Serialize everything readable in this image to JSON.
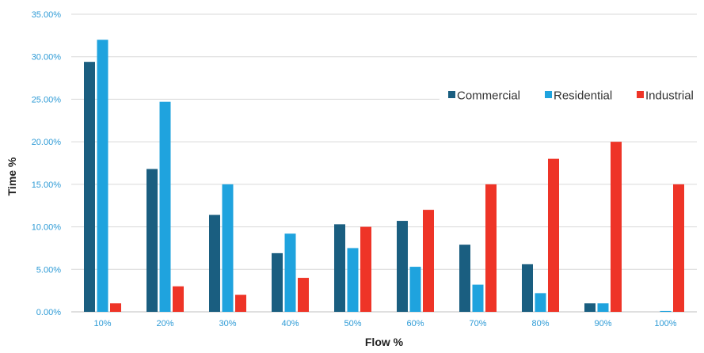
{
  "chart_data": {
    "type": "bar",
    "title": "",
    "xlabel": "Flow %",
    "ylabel": "Time %",
    "categories": [
      "10%",
      "20%",
      "30%",
      "40%",
      "50%",
      "60%",
      "70%",
      "80%",
      "90%",
      "100%"
    ],
    "series": [
      {
        "name": "Commercial",
        "color": "#1a5e80",
        "values": [
          29.4,
          16.8,
          11.4,
          6.9,
          10.3,
          10.7,
          7.9,
          5.6,
          1.0,
          0.0
        ]
      },
      {
        "name": "Residential",
        "color": "#1fa3de",
        "values": [
          32.0,
          24.7,
          15.0,
          9.2,
          7.5,
          5.3,
          3.2,
          2.2,
          1.0,
          0.1
        ]
      },
      {
        "name": "Industrial",
        "color": "#ee3427",
        "values": [
          1.0,
          3.0,
          2.0,
          4.0,
          10.0,
          12.0,
          15.0,
          18.0,
          20.0,
          15.0
        ]
      }
    ],
    "ylim": [
      0,
      35
    ],
    "yticks": [
      0,
      5,
      10,
      15,
      20,
      25,
      30,
      35
    ],
    "ytick_labels": [
      "0.00%",
      "5.00%",
      "10.00%",
      "15.00%",
      "20.00%",
      "25.00%",
      "30.00%",
      "35.00%"
    ],
    "grid": true,
    "legend_position": "top-right",
    "tick_label_color": "#2e9bd6",
    "axis_title_color": "#222222"
  }
}
